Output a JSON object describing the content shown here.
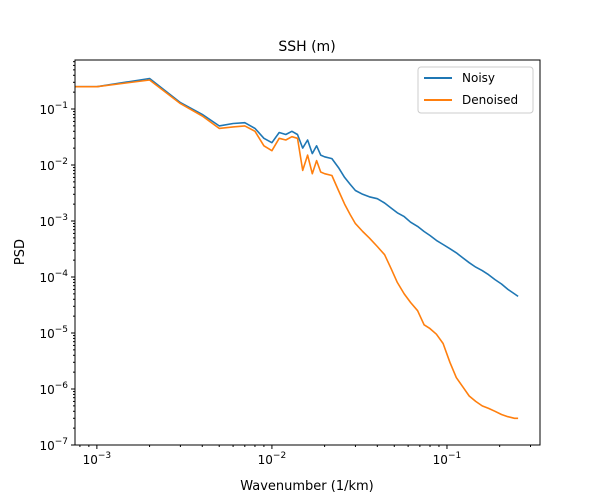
{
  "chart_data": {
    "type": "line",
    "title": "SSH (m)",
    "xlabel": "Wavenumber (1/km)",
    "ylabel": "PSD",
    "x_scale": "log",
    "y_scale": "log",
    "xlim": [
      0.00075,
      0.34
    ],
    "ylim": [
      1e-07,
      0.75
    ],
    "grid": false,
    "legend_position": "top-right",
    "x_ticks": [
      {
        "value": 0.001,
        "base": "10",
        "exp": "−3"
      },
      {
        "value": 0.01,
        "base": "10",
        "exp": "−2"
      },
      {
        "value": 0.1,
        "base": "10",
        "exp": "−1"
      }
    ],
    "y_ticks": [
      {
        "value": 1e-07,
        "base": "10",
        "exp": "−7"
      },
      {
        "value": 1e-06,
        "base": "10",
        "exp": "−6"
      },
      {
        "value": 1e-05,
        "base": "10",
        "exp": "−5"
      },
      {
        "value": 0.0001,
        "base": "10",
        "exp": "−4"
      },
      {
        "value": 0.001,
        "base": "10",
        "exp": "−3"
      },
      {
        "value": 0.01,
        "base": "10",
        "exp": "−2"
      },
      {
        "value": 0.1,
        "base": "10",
        "exp": "−1"
      }
    ],
    "series": [
      {
        "name": "Noisy",
        "color": "#1f77b4",
        "x": [
          0.0005,
          0.001,
          0.002,
          0.003,
          0.004,
          0.005,
          0.006,
          0.007,
          0.008,
          0.009,
          0.01,
          0.011,
          0.012,
          0.013,
          0.014,
          0.015,
          0.016,
          0.017,
          0.018,
          0.019,
          0.02,
          0.022,
          0.024,
          0.026,
          0.028,
          0.03,
          0.033,
          0.036,
          0.04,
          0.044,
          0.048,
          0.052,
          0.057,
          0.062,
          0.068,
          0.074,
          0.08,
          0.087,
          0.095,
          0.104,
          0.113,
          0.123,
          0.134,
          0.146,
          0.159,
          0.173,
          0.188,
          0.205,
          0.223,
          0.243,
          0.255
        ],
        "y": [
          0.25,
          0.25,
          0.35,
          0.13,
          0.08,
          0.05,
          0.055,
          0.057,
          0.045,
          0.03,
          0.025,
          0.038,
          0.035,
          0.04,
          0.035,
          0.02,
          0.028,
          0.016,
          0.022,
          0.015,
          0.014,
          0.013,
          0.009,
          0.006,
          0.0045,
          0.0035,
          0.003,
          0.0027,
          0.0025,
          0.0021,
          0.0017,
          0.0014,
          0.0012,
          0.00095,
          0.0008,
          0.00065,
          0.00055,
          0.00045,
          0.00038,
          0.00032,
          0.00027,
          0.00022,
          0.00018,
          0.00015,
          0.00013,
          0.00011,
          9e-05,
          7.5e-05,
          6e-05,
          5e-05,
          4.5e-05
        ]
      },
      {
        "name": "Denoised",
        "color": "#ff7f0e",
        "x": [
          0.0005,
          0.001,
          0.002,
          0.003,
          0.004,
          0.005,
          0.006,
          0.007,
          0.008,
          0.009,
          0.01,
          0.011,
          0.012,
          0.013,
          0.014,
          0.015,
          0.016,
          0.017,
          0.018,
          0.019,
          0.02,
          0.022,
          0.024,
          0.026,
          0.028,
          0.03,
          0.033,
          0.036,
          0.04,
          0.044,
          0.048,
          0.052,
          0.057,
          0.062,
          0.068,
          0.074,
          0.08,
          0.087,
          0.095,
          0.104,
          0.113,
          0.123,
          0.134,
          0.146,
          0.159,
          0.173,
          0.188,
          0.205,
          0.223,
          0.243,
          0.255
        ],
        "y": [
          0.25,
          0.25,
          0.33,
          0.125,
          0.075,
          0.045,
          0.048,
          0.05,
          0.04,
          0.022,
          0.018,
          0.03,
          0.028,
          0.032,
          0.03,
          0.008,
          0.015,
          0.007,
          0.012,
          0.0075,
          0.007,
          0.0065,
          0.0035,
          0.002,
          0.0013,
          0.0009,
          0.00065,
          0.0005,
          0.00035,
          0.00025,
          0.00014,
          8e-05,
          5e-05,
          3.5e-05,
          2.5e-05,
          1.4e-05,
          1.2e-05,
          9.5e-06,
          6.5e-06,
          3e-06,
          1.6e-06,
          1.1e-06,
          7.5e-07,
          6e-07,
          5e-07,
          4.5e-07,
          4e-07,
          3.5e-07,
          3.2e-07,
          3e-07,
          3e-07
        ]
      }
    ]
  }
}
